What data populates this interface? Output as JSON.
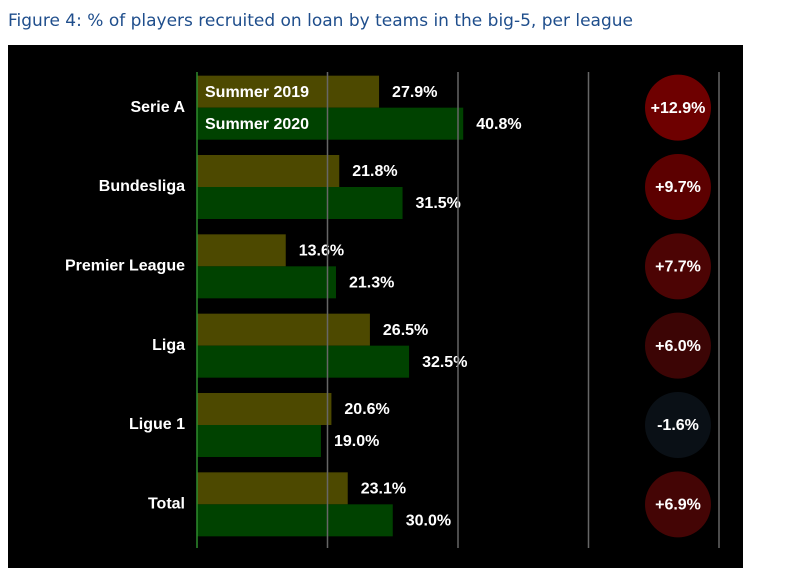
{
  "chart_data": {
    "type": "bar",
    "orientation": "horizontal",
    "title": "Figure 4: % of players recruited on loan by teams in the big-5, per league",
    "categories": [
      "Serie A",
      "Bundesliga",
      "Premier League",
      "Liga",
      "Ligue 1",
      "Total"
    ],
    "series": [
      {
        "name": "Summer 2019",
        "color": "#4d4900",
        "values": [
          27.9,
          21.8,
          13.6,
          26.5,
          20.6,
          23.1
        ],
        "value_labels": [
          "27.9%",
          "21.8%",
          "13.6%",
          "26.5%",
          "20.6%",
          "23.1%"
        ]
      },
      {
        "name": "Summer 2020",
        "color": "#004200",
        "values": [
          40.8,
          31.5,
          21.3,
          32.5,
          19.0,
          30.0
        ],
        "value_labels": [
          "40.8%",
          "31.5%",
          "21.3%",
          "32.5%",
          "19.0%",
          "30.0%"
        ]
      }
    ],
    "differences": {
      "values": [
        12.9,
        9.7,
        7.7,
        6.0,
        -1.6,
        6.9
      ],
      "value_labels": [
        "+12.9%",
        "+9.7%",
        "+7.7%",
        "+6.0%",
        "-1.6%",
        "+6.9%"
      ],
      "colors": [
        "#6e0000",
        "#5c0000",
        "#4c0404",
        "#3c0505",
        "#0a1016",
        "#440505"
      ]
    },
    "xlim": [
      0,
      80
    ],
    "xticks": [
      0,
      20,
      40,
      60,
      80
    ],
    "grid": true,
    "legend": "inside-bars"
  }
}
